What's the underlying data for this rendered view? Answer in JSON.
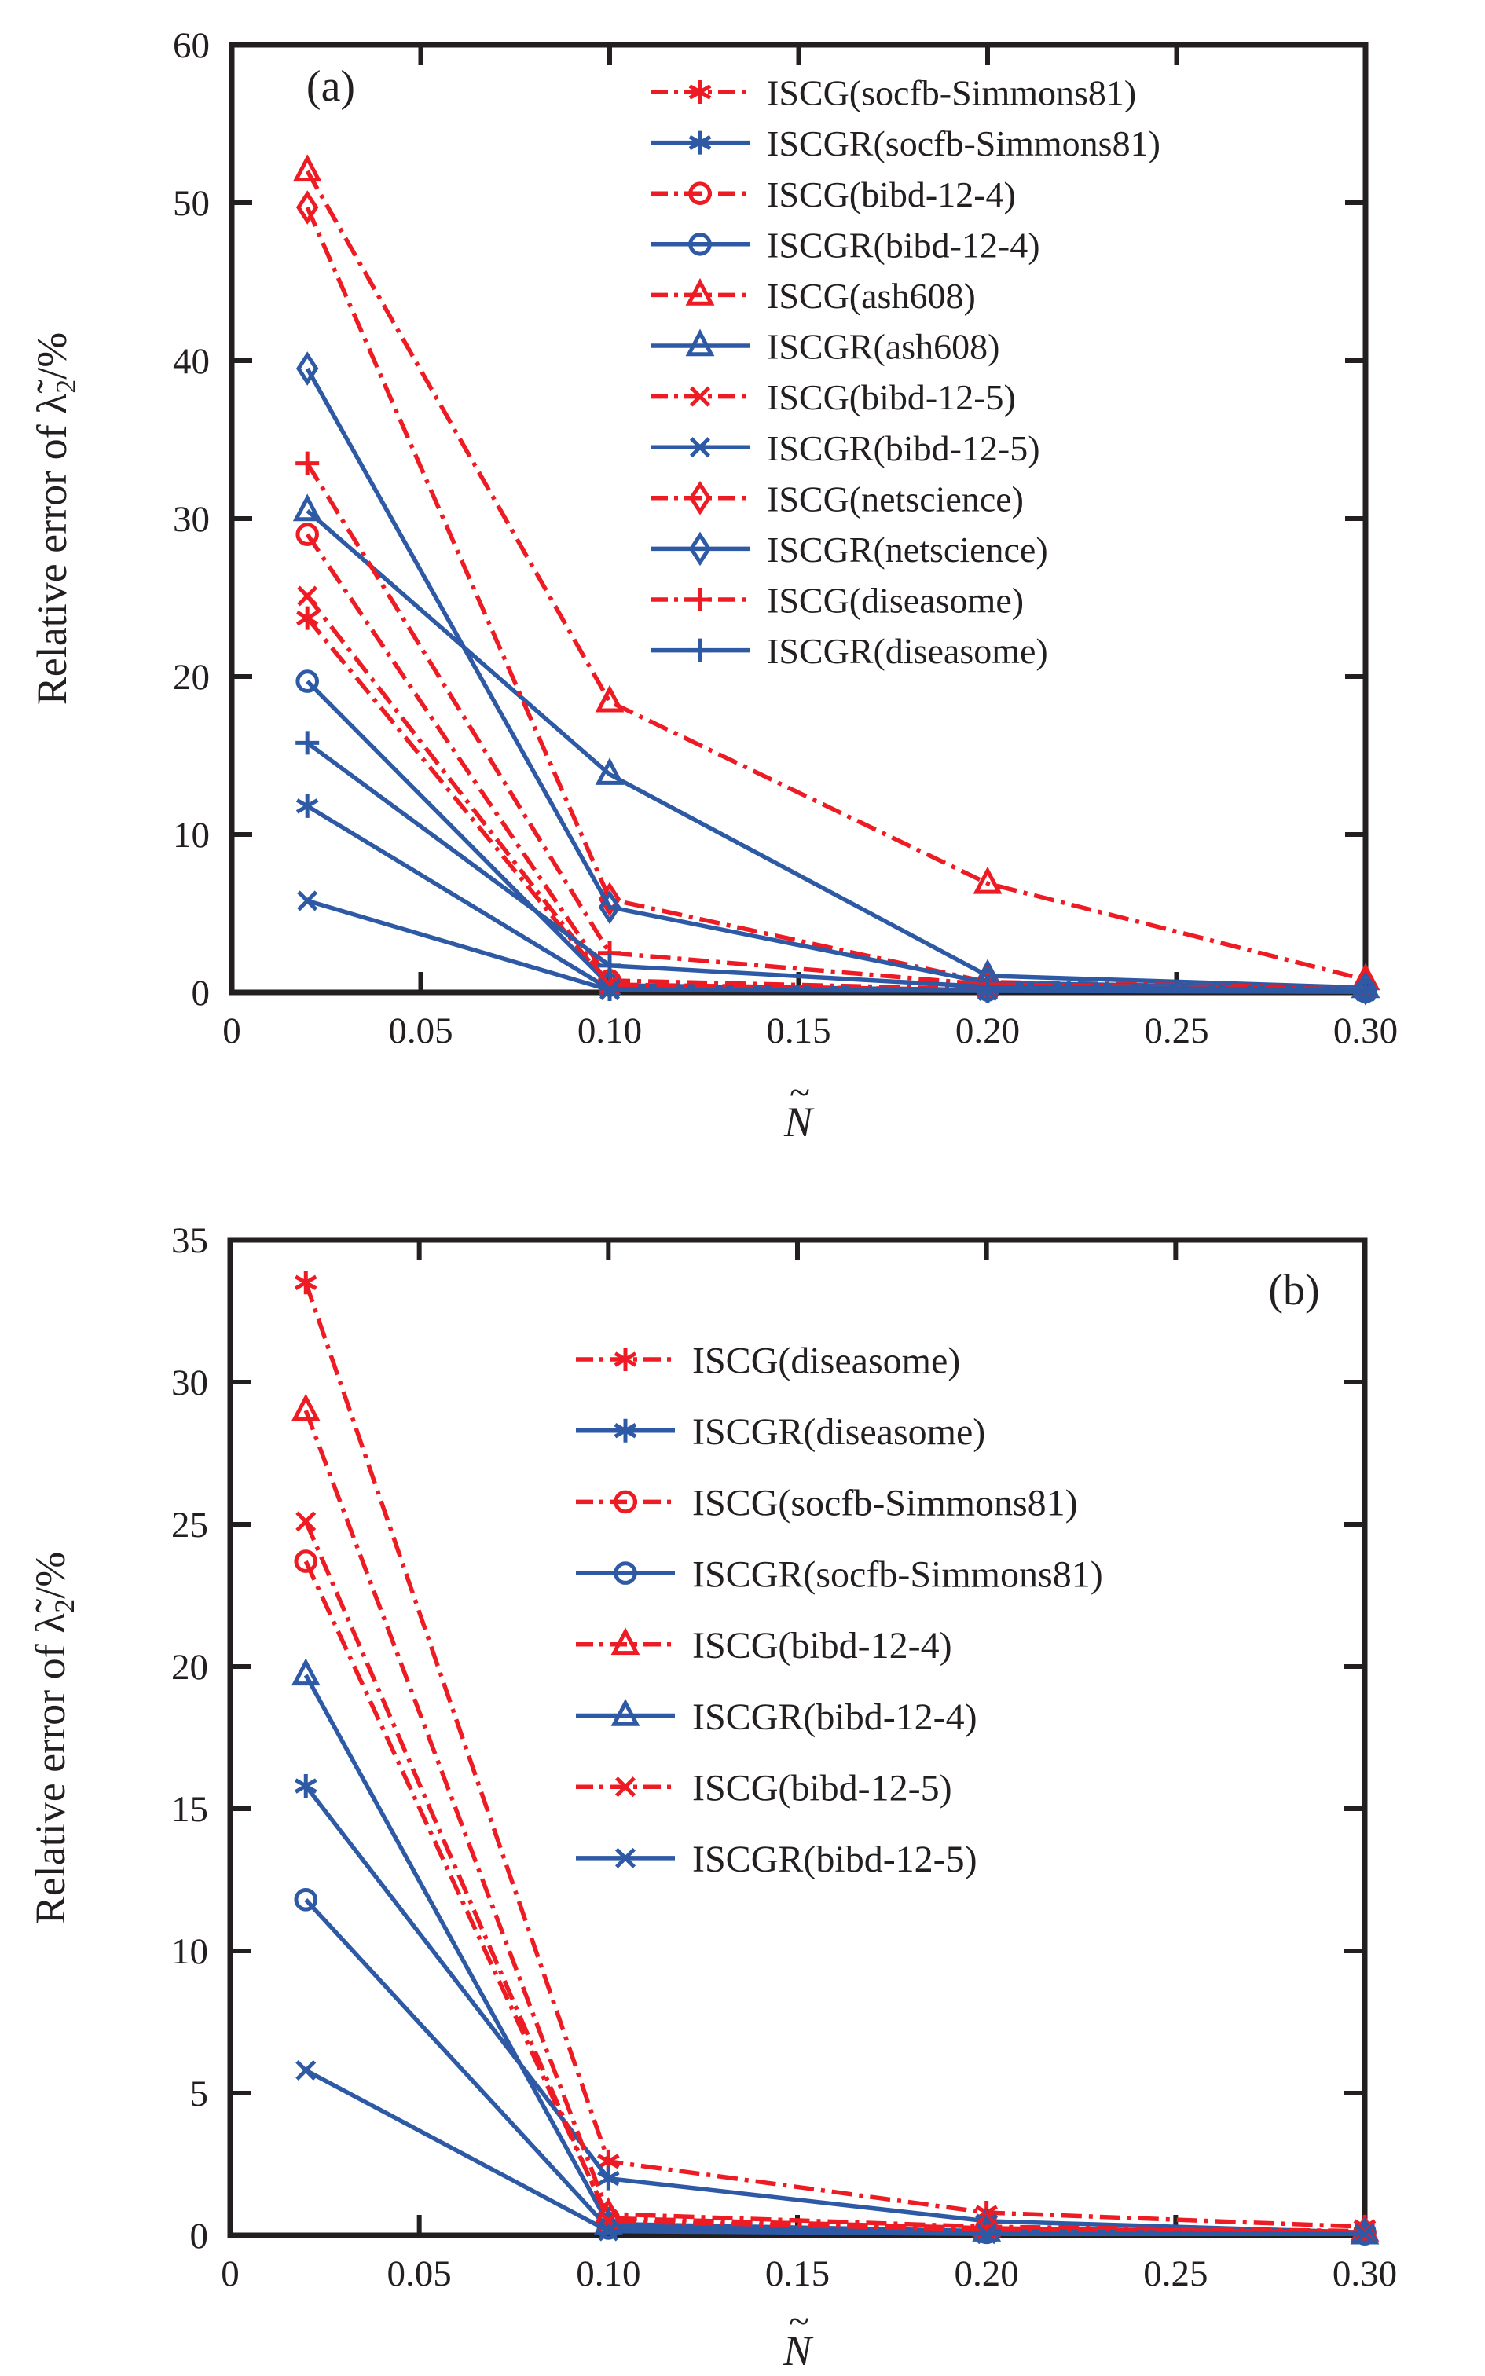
{
  "figure": {
    "background": "#ffffff",
    "axis_color": "#231f20",
    "series_colors": {
      "iscg_red": "#ed1c24",
      "iscgr_blue": "#2e59a5"
    }
  },
  "chart_data": [
    {
      "id": "a",
      "type": "line",
      "panel_label": "(a)",
      "xlabel": {
        "base": "N",
        "accent": "~"
      },
      "ylabel": {
        "main": "Relative error of λ̃",
        "sub": "2",
        "suffix": "/%"
      },
      "xlim": [
        0,
        0.3
      ],
      "ylim": [
        0,
        60
      ],
      "x_tick_values": [
        0,
        0.05,
        0.1,
        0.15,
        0.2,
        0.25,
        0.3
      ],
      "x_tick_labels": [
        "0",
        "0.05",
        "0.10",
        "0.15",
        "0.20",
        "0.25",
        "0.30"
      ],
      "y_tick_values": [
        0,
        10,
        20,
        30,
        40,
        50,
        60
      ],
      "y_tick_labels": [
        "0",
        "10",
        "20",
        "30",
        "40",
        "50",
        "60"
      ],
      "legend_position": "upper-right",
      "grid": false,
      "x": [
        0.02,
        0.1,
        0.2,
        0.3
      ],
      "series": [
        {
          "name": "ISCG(socfb-Simmons81)",
          "color": "iscg_red",
          "line": "dashdot",
          "marker": "asterisk",
          "values": [
            23.7,
            0.4,
            0.15,
            0.1
          ]
        },
        {
          "name": "ISCGR(socfb-Simmons81)",
          "color": "iscgr_blue",
          "line": "solid",
          "marker": "asterisk",
          "values": [
            11.8,
            0.2,
            0.1,
            0.05
          ]
        },
        {
          "name": "ISCG(bibd-12-4)",
          "color": "iscg_red",
          "line": "dashdot",
          "marker": "circle",
          "values": [
            29.0,
            0.75,
            0.2,
            0.1
          ]
        },
        {
          "name": "ISCGR(bibd-12-4)",
          "color": "iscgr_blue",
          "line": "solid",
          "marker": "circle",
          "values": [
            19.7,
            0.45,
            0.15,
            0.05
          ]
        },
        {
          "name": "ISCG(ash608)",
          "color": "iscg_red",
          "line": "dashdot",
          "marker": "triangle",
          "values": [
            52.0,
            18.4,
            6.9,
            0.8
          ]
        },
        {
          "name": "ISCGR(ash608)",
          "color": "iscgr_blue",
          "line": "solid",
          "marker": "triangle",
          "values": [
            30.5,
            13.8,
            1.05,
            0.3
          ]
        },
        {
          "name": "ISCG(bibd-12-5)",
          "color": "iscg_red",
          "line": "dashdot",
          "marker": "x",
          "values": [
            25.1,
            0.5,
            0.15,
            0.1
          ]
        },
        {
          "name": "ISCGR(bibd-12-5)",
          "color": "iscgr_blue",
          "line": "solid",
          "marker": "x",
          "values": [
            5.8,
            0.15,
            0.1,
            0.05
          ]
        },
        {
          "name": "ISCG(netscience)",
          "color": "iscg_red",
          "line": "dashdot",
          "marker": "diamond",
          "values": [
            49.7,
            5.9,
            0.65,
            0.3
          ]
        },
        {
          "name": "ISCGR(netscience)",
          "color": "iscgr_blue",
          "line": "solid",
          "marker": "diamond",
          "values": [
            39.5,
            5.4,
            0.6,
            0.25
          ]
        },
        {
          "name": "ISCG(diseasome)",
          "color": "iscg_red",
          "line": "dashdot",
          "marker": "plus",
          "values": [
            33.5,
            2.5,
            0.5,
            0.2
          ]
        },
        {
          "name": "ISCGR(diseasome)",
          "color": "iscgr_blue",
          "line": "solid",
          "marker": "plus",
          "values": [
            15.8,
            1.7,
            0.35,
            0.15
          ]
        }
      ]
    },
    {
      "id": "b",
      "type": "line",
      "panel_label": "(b)",
      "xlabel": {
        "base": "N",
        "accent": "~"
      },
      "ylabel": {
        "main": "Relative error of λ̃",
        "sub": "2",
        "suffix": "/%"
      },
      "xlim": [
        0,
        0.3
      ],
      "ylim": [
        0,
        35
      ],
      "x_tick_values": [
        0,
        0.05,
        0.1,
        0.15,
        0.2,
        0.25,
        0.3
      ],
      "x_tick_labels": [
        "0",
        "0.05",
        "0.10",
        "0.15",
        "0.20",
        "0.25",
        "0.30"
      ],
      "y_tick_values": [
        0,
        5,
        10,
        15,
        20,
        25,
        30,
        35
      ],
      "y_tick_labels": [
        "0",
        "5",
        "10",
        "15",
        "20",
        "25",
        "30",
        "35"
      ],
      "legend_position": "upper-right",
      "grid": false,
      "x": [
        0.02,
        0.1,
        0.2,
        0.3
      ],
      "series": [
        {
          "name": "ISCG(diseasome)",
          "color": "iscg_red",
          "line": "dashdot",
          "marker": "asterisk",
          "values": [
            33.5,
            2.6,
            0.8,
            0.3
          ]
        },
        {
          "name": "ISCGR(diseasome)",
          "color": "iscgr_blue",
          "line": "solid",
          "marker": "asterisk",
          "values": [
            15.8,
            2.0,
            0.5,
            0.1
          ]
        },
        {
          "name": "ISCG(socfb-Simmons81)",
          "color": "iscg_red",
          "line": "dashdot",
          "marker": "circle",
          "values": [
            23.7,
            0.6,
            0.25,
            0.1
          ]
        },
        {
          "name": "ISCGR(socfb-Simmons81)",
          "color": "iscgr_blue",
          "line": "solid",
          "marker": "circle",
          "values": [
            11.8,
            0.25,
            0.1,
            0.05
          ]
        },
        {
          "name": "ISCG(bibd-12-4)",
          "color": "iscg_red",
          "line": "dashdot",
          "marker": "triangle",
          "values": [
            29.0,
            0.75,
            0.3,
            0.15
          ]
        },
        {
          "name": "ISCGR(bibd-12-4)",
          "color": "iscgr_blue",
          "line": "solid",
          "marker": "triangle",
          "values": [
            19.7,
            0.4,
            0.15,
            0.05
          ]
        },
        {
          "name": "ISCG(bibd-12-5)",
          "color": "iscg_red",
          "line": "dashdot",
          "marker": "x",
          "values": [
            25.1,
            0.5,
            0.2,
            0.1
          ]
        },
        {
          "name": "ISCGR(bibd-12-5)",
          "color": "iscgr_blue",
          "line": "solid",
          "marker": "x",
          "values": [
            5.8,
            0.15,
            0.05,
            0.05
          ]
        }
      ]
    }
  ]
}
